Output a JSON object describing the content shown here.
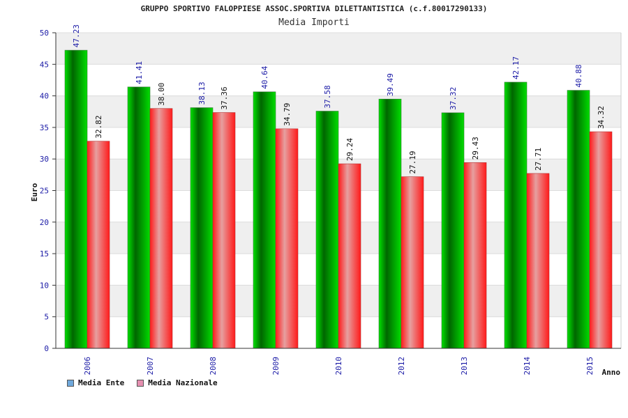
{
  "title": "GRUPPO SPORTIVO FALOPPIESE ASSOC.SPORTIVA DILETTANTISTICA (c.f.80017290133)",
  "subtitle": "Media Importi",
  "legend": [
    {
      "label": "Media Ente",
      "color": "#6fa8dc"
    },
    {
      "label": "Media Nazionale",
      "color": "#e58fb0"
    }
  ],
  "chart_data": {
    "type": "bar",
    "title": "GRUPPO SPORTIVO FALOPPIESE ASSOC.SPORTIVA DILETTANTISTICA (c.f.80017290133)",
    "subtitle": "Media Importi",
    "xlabel": "Anno",
    "ylabel": "Euro",
    "ylim": [
      0,
      50
    ],
    "yticks": [
      0,
      5,
      10,
      15,
      20,
      25,
      30,
      35,
      40,
      45,
      50
    ],
    "categories": [
      "2006",
      "2007",
      "2008",
      "2009",
      "2010",
      "2012",
      "2013",
      "2014",
      "2015"
    ],
    "series": [
      {
        "name": "Media Ente",
        "color": "#00cc00",
        "values": [
          47.23,
          41.41,
          38.13,
          40.64,
          37.58,
          39.49,
          37.32,
          42.17,
          40.88
        ],
        "labels": [
          "47.23",
          "41.41",
          "38.13",
          "40.64",
          "37.58",
          "39.49",
          "37.32",
          "42.17",
          "40.88"
        ]
      },
      {
        "name": "Media Nazionale",
        "color": "#ff1a1a",
        "values": [
          32.82,
          38.0,
          37.36,
          34.79,
          29.24,
          27.19,
          29.43,
          27.71,
          34.32
        ],
        "labels": [
          "32.82",
          "38.00",
          "37.36",
          "34.79",
          "29.24",
          "27.19",
          "29.43",
          "27.71",
          "34.32"
        ]
      }
    ],
    "grid": true,
    "legend_position": "bottom-left"
  }
}
